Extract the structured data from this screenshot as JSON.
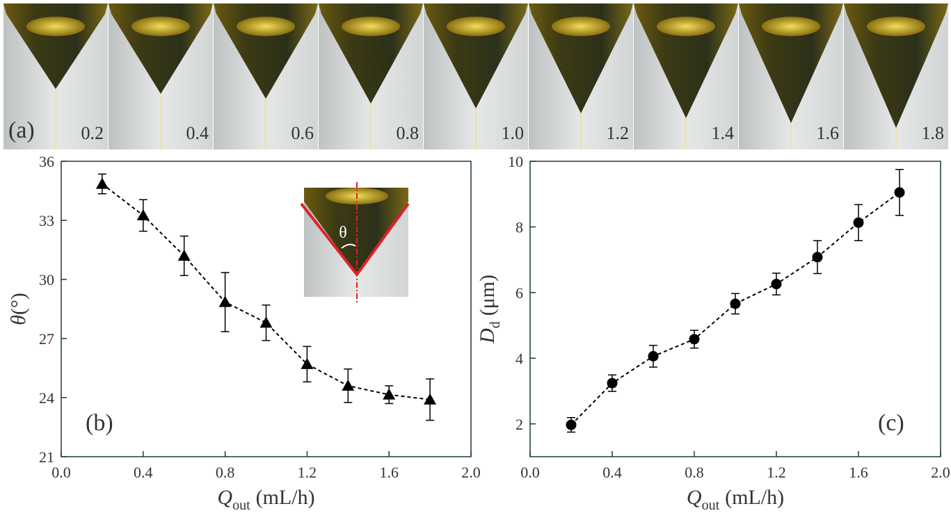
{
  "photos": {
    "panel_label": "(a)",
    "frame_labels": [
      "0.2",
      "0.4",
      "0.6",
      "0.8",
      "1.0",
      "1.2",
      "1.4",
      "1.6",
      "1.8"
    ]
  },
  "inset_label": "θ",
  "chart_data": [
    {
      "type": "line",
      "panel_label": "(b)",
      "xlabel": {
        "symbol": "Q",
        "subscript": "out",
        "unit": "(mL/h)"
      },
      "ylabel": {
        "symbol": "θ",
        "unit": "(°)"
      },
      "xlim": [
        0,
        2
      ],
      "xticks": [
        {
          "value": 0,
          "label": "0.0"
        },
        0.4,
        0.8,
        1.2,
        1.6,
        {
          "value": 2,
          "label": "2.0"
        }
      ],
      "ylim": [
        21,
        36
      ],
      "yticks": [
        21,
        24,
        27,
        30,
        33,
        36
      ],
      "series": [
        {
          "color": "#000000",
          "marker": "triangle",
          "line_style": "dashed",
          "x": [
            0.2,
            0.4,
            0.6,
            0.8,
            1.0,
            1.2,
            1.4,
            1.6,
            1.8
          ],
          "values": [
            34.85,
            33.25,
            31.2,
            28.85,
            27.8,
            25.7,
            24.6,
            24.15,
            23.9
          ],
          "errors": [
            0.5,
            0.8,
            1.0,
            1.5,
            0.9,
            0.9,
            0.85,
            0.45,
            1.05
          ]
        }
      ]
    },
    {
      "type": "line",
      "panel_label": "(c)",
      "xlabel": {
        "symbol": "Q",
        "subscript": "out",
        "unit": "(mL/h)"
      },
      "ylabel": {
        "symbol": "D",
        "subscript": "d",
        "unit": "(μm)"
      },
      "xlim": [
        0,
        2
      ],
      "xticks": [
        {
          "value": 0,
          "label": "0.0"
        },
        0.4,
        0.8,
        1.2,
        1.6,
        {
          "value": 2,
          "label": "2.0"
        }
      ],
      "ylim": [
        1,
        10
      ],
      "yticks": [
        2,
        4,
        6,
        8,
        10
      ],
      "series": [
        {
          "color": "#000000",
          "marker": "circle",
          "line_style": "dashed",
          "x": [
            0.2,
            0.4,
            0.6,
            0.8,
            1.0,
            1.2,
            1.4,
            1.6,
            1.8
          ],
          "values": [
            1.97,
            3.24,
            4.06,
            4.58,
            5.66,
            6.26,
            7.08,
            8.13,
            9.05
          ],
          "errors": [
            0.22,
            0.25,
            0.33,
            0.27,
            0.31,
            0.33,
            0.5,
            0.55,
            0.7
          ]
        }
      ]
    }
  ]
}
